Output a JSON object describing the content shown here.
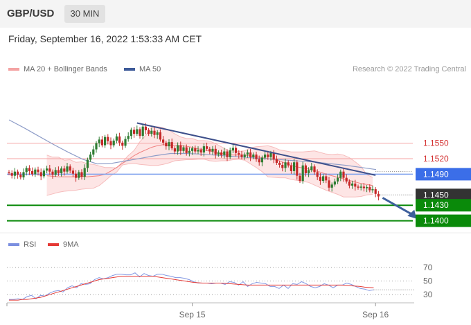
{
  "header": {
    "symbol": "GBP/USD",
    "timeframe": "30 MIN"
  },
  "datetime": "Friday, September 16, 2022 1:53:33 AM CET",
  "legend": {
    "ma20": {
      "label": "MA 20 + Bollinger Bands",
      "color": "#f4a3a3"
    },
    "ma50": {
      "label": "MA 50",
      "color": "#3d5a99"
    }
  },
  "credit": "Research © 2022 Trading Central",
  "rsi_legend": {
    "rsi": {
      "label": "RSI",
      "color": "#7b8fe0"
    },
    "ma9": {
      "label": "9MA",
      "color": "#e53935"
    }
  },
  "colors": {
    "up": "#2f7d32",
    "down": "#c62828",
    "blue_level": "#3b6ee8",
    "green_level": "#0a8a0a",
    "dark_level": "#333333"
  },
  "chart_data": [
    {
      "type": "candlestick",
      "ylim": [
        1.1374,
        1.1666
      ],
      "levels": [
        {
          "value": 1.155,
          "label": "1.1550",
          "style": "resistance"
        },
        {
          "value": 1.152,
          "label": "1.1520",
          "style": "resistance"
        },
        {
          "value": 1.149,
          "label": "1.1490",
          "style": "pivot"
        },
        {
          "value": 1.145,
          "label": "1.1450",
          "style": "last"
        },
        {
          "value": 1.143,
          "label": "1.1430",
          "style": "target"
        },
        {
          "value": 1.14,
          "label": "1.1400",
          "style": "target"
        }
      ],
      "x_ticks": [
        {
          "index": 63,
          "label": "Sep 15"
        },
        {
          "index": 126,
          "label": "Sep 16"
        }
      ],
      "closes": [
        1.1492,
        1.1487,
        1.1495,
        1.1489,
        1.1484,
        1.1494,
        1.1502,
        1.1496,
        1.149,
        1.1499,
        1.1494,
        1.1486,
        1.1497,
        1.1501,
        1.1495,
        1.1489,
        1.1498,
        1.1492,
        1.1501,
        1.1495,
        1.1505,
        1.1497,
        1.1491,
        1.1483,
        1.1494,
        1.1485,
        1.1502,
        1.1518,
        1.1528,
        1.1538,
        1.155,
        1.1557,
        1.1546,
        1.1562,
        1.1554,
        1.1546,
        1.1555,
        1.1563,
        1.1551,
        1.1545,
        1.1558,
        1.1564,
        1.1576,
        1.1568,
        1.1577,
        1.1564,
        1.1582,
        1.1575,
        1.1568,
        1.1574,
        1.1566,
        1.1571,
        1.1557,
        1.1551,
        1.1544,
        1.1552,
        1.154,
        1.1534,
        1.1546,
        1.1535,
        1.1542,
        1.1531,
        1.1535,
        1.154,
        1.1534,
        1.1537,
        1.1532,
        1.1544,
        1.1539,
        1.1534,
        1.1539,
        1.1528,
        1.1532,
        1.1527,
        1.1534,
        1.1523,
        1.1536,
        1.1541,
        1.1531,
        1.1528,
        1.1523,
        1.1528,
        1.1532,
        1.1523,
        1.1528,
        1.1519,
        1.1513,
        1.1522,
        1.1528,
        1.1523,
        1.1531,
        1.1519,
        1.1512,
        1.1508,
        1.1502,
        1.1513,
        1.1507,
        1.1496,
        1.1513,
        1.1487,
        1.1477,
        1.1507,
        1.1492,
        1.1498,
        1.1505,
        1.1494,
        1.1485,
        1.1477,
        1.1486,
        1.1478,
        1.1464,
        1.147,
        1.1476,
        1.1483,
        1.1495,
        1.1483,
        1.1476,
        1.1468,
        1.1472,
        1.1466,
        1.1464,
        1.1466,
        1.1463,
        1.1465,
        1.1459,
        1.1461,
        1.1452,
        1.1447
      ],
      "series": [
        {
          "name": "MA 20 + Bollinger Bands",
          "upper": [
            1.1527,
            1.1523,
            1.1523,
            1.1517,
            1.1518,
            1.1513,
            1.1514,
            1.151,
            1.1509,
            1.1506,
            1.1503,
            1.1503,
            1.1502,
            1.1514,
            1.1526,
            1.1536,
            1.1553,
            1.1565,
            1.1581,
            1.1582,
            1.158,
            1.1575,
            1.1568,
            1.1562,
            1.1559,
            1.1559,
            1.1555,
            1.1555,
            1.1554,
            1.1549,
            1.1543,
            1.1537,
            1.1535,
            1.1534,
            1.1535,
            1.1541,
            1.1543,
            1.1544,
            1.1545,
            1.1542,
            1.1537,
            1.1535,
            1.1533,
            1.1533,
            1.1533,
            1.1534,
            1.1535,
            1.1532,
            1.1529,
            1.1528,
            1.1529,
            1.1527,
            1.1522,
            1.1514,
            1.1505,
            1.1489,
            1.1484
          ],
          "middle": [
            1.1487,
            1.1486,
            1.1485,
            1.1485,
            1.1485,
            1.1485,
            1.1486,
            1.1485,
            1.1486,
            1.1487,
            1.149,
            1.1496,
            1.1503,
            1.1511,
            1.1518,
            1.1526,
            1.1532,
            1.1537,
            1.1542,
            1.1545,
            1.1547,
            1.1546,
            1.1546,
            1.1545,
            1.1544,
            1.1542,
            1.1539,
            1.1537,
            1.1535,
            1.1532,
            1.153,
            1.1528,
            1.1527,
            1.1527,
            1.1527,
            1.1525,
            1.1524,
            1.1522,
            1.152,
            1.1518,
            1.1516,
            1.1511,
            1.1507,
            1.1504,
            1.1502,
            1.15,
            1.1497,
            1.1494,
            1.149,
            1.1487,
            1.1484,
            1.1481,
            1.1478,
            1.1475,
            1.1472,
            1.147,
            1.1468
          ],
          "lower": [
            1.1449,
            1.1452,
            1.1455,
            1.1457,
            1.1458,
            1.1459,
            1.1461,
            1.1462,
            1.1463,
            1.1468,
            1.1477,
            1.1487,
            1.1494,
            1.1508,
            1.151,
            1.1511,
            1.1509,
            1.1508,
            1.1507,
            1.1507,
            1.1509,
            1.1512,
            1.1516,
            1.1517,
            1.1518,
            1.1518,
            1.1519,
            1.1519,
            1.1516,
            1.1515,
            1.1516,
            1.1516,
            1.1518,
            1.1519,
            1.1517,
            1.151,
            1.1503,
            1.1495,
            1.1485,
            1.1484,
            1.1483,
            1.1483,
            1.148,
            1.1478,
            1.1476,
            1.1474,
            1.1469,
            1.1464,
            1.1459,
            1.1455,
            1.1451,
            1.1446,
            1.1446,
            1.1446,
            1.1447,
            1.145,
            1.1451
          ]
        },
        {
          "name": "MA 50",
          "values": [
            1.1595,
            1.158,
            1.1564,
            1.1548,
            1.1533,
            1.1519,
            1.151,
            1.1511,
            1.1516,
            1.1521,
            1.1526,
            1.153,
            1.153,
            1.1529,
            1.1527,
            1.1525,
            1.1523,
            1.1521,
            1.1519,
            1.1517,
            1.1515,
            1.1513,
            1.151,
            1.1507,
            1.1503,
            1.1499
          ]
        }
      ],
      "trendlines": [
        {
          "from": [
            44,
            1.1589
          ],
          "to": [
            126,
            1.1488
          ]
        }
      ],
      "projection_arrow": {
        "from": [
          127,
          1.1447
        ],
        "to": [
          136,
          1.1404
        ]
      }
    },
    {
      "type": "line",
      "ylim": [
        18,
        82
      ],
      "ticks": [
        70,
        50,
        30
      ],
      "series": [
        {
          "name": "RSI",
          "values": [
            23,
            23,
            24,
            23,
            27,
            29,
            24,
            29,
            28,
            32,
            35,
            36,
            34,
            40,
            43,
            40,
            46,
            45,
            46,
            52,
            55,
            53,
            55,
            58,
            60,
            60,
            59,
            59,
            62,
            56,
            61,
            58,
            57,
            60,
            60,
            58,
            57,
            55,
            55,
            54,
            52,
            49,
            47,
            47,
            47,
            46,
            47,
            47,
            45,
            49,
            48,
            44,
            49,
            42,
            46,
            48,
            47,
            46,
            42,
            42,
            39,
            44,
            39,
            46,
            45,
            49,
            46,
            42,
            40,
            42,
            46,
            44,
            40,
            44,
            44,
            47,
            45,
            42,
            39,
            38,
            36,
            37
          ]
        },
        {
          "name": "9MA",
          "values": [
            22,
            22,
            22,
            23,
            23,
            24,
            25,
            26,
            28,
            30,
            32,
            34,
            36,
            38,
            40,
            42,
            44,
            46,
            48,
            50,
            52,
            53,
            54,
            55,
            56,
            57,
            57,
            57,
            57,
            57,
            57,
            57,
            57,
            56,
            55,
            54,
            53,
            52,
            51,
            50,
            49,
            48,
            47.5,
            47,
            47,
            47,
            47,
            47,
            46.5,
            46,
            45.5,
            45,
            44.5,
            44,
            44,
            44,
            44,
            44,
            44,
            44,
            44,
            44,
            44,
            44,
            44,
            44,
            44,
            44,
            44,
            44,
            44,
            44,
            44,
            44,
            44,
            43.5,
            43,
            42.5,
            42,
            41,
            40.5,
            40
          ]
        }
      ],
      "last_value": 37
    }
  ]
}
